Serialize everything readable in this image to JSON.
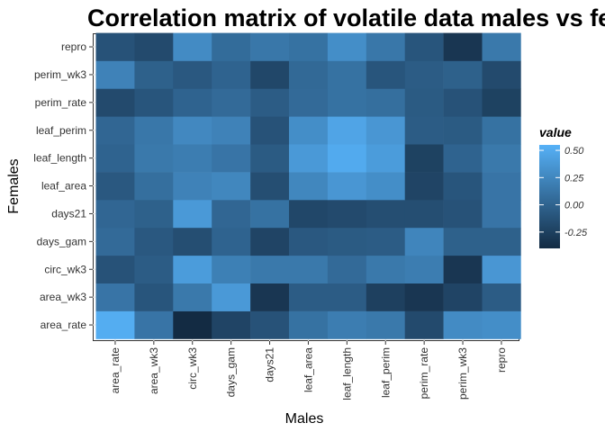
{
  "chart_data": {
    "type": "heatmap",
    "title": "Correlation matrix of volatile data males vs females",
    "xlabel": "Males",
    "ylabel": "Females",
    "x_categories": [
      "area_rate",
      "area_wk3",
      "circ_wk3",
      "days_gam",
      "days21",
      "leaf_area",
      "leaf_length",
      "leaf_perim",
      "perim_rate",
      "perim_wk3",
      "repro"
    ],
    "y_categories": [
      "area_rate",
      "area_wk3",
      "circ_wk3",
      "days_gam",
      "days21",
      "leaf_area",
      "leaf_length",
      "leaf_perim",
      "perim_rate",
      "perim_wk3",
      "repro"
    ],
    "values": [
      [
        0.52,
        0.12,
        -0.4,
        -0.22,
        -0.12,
        0.1,
        0.18,
        0.15,
        -0.18,
        0.28,
        0.3
      ],
      [
        0.12,
        -0.1,
        0.15,
        0.38,
        -0.32,
        -0.05,
        -0.05,
        -0.25,
        -0.32,
        -0.22,
        -0.05
      ],
      [
        -0.12,
        -0.05,
        0.4,
        0.2,
        0.15,
        0.15,
        0.05,
        0.15,
        0.18,
        -0.32,
        0.36
      ],
      [
        0.05,
        -0.08,
        -0.15,
        0.0,
        -0.22,
        -0.08,
        -0.06,
        -0.05,
        0.24,
        -0.02,
        -0.02
      ],
      [
        0.02,
        -0.02,
        0.38,
        0.02,
        0.1,
        -0.2,
        -0.18,
        -0.15,
        -0.15,
        -0.12,
        0.12
      ],
      [
        -0.08,
        0.08,
        0.22,
        0.25,
        -0.15,
        0.25,
        0.36,
        0.3,
        -0.22,
        -0.1,
        0.12
      ],
      [
        0.0,
        0.15,
        0.18,
        0.12,
        -0.06,
        0.38,
        0.5,
        0.4,
        -0.24,
        0.0,
        0.15
      ],
      [
        0.02,
        0.14,
        0.26,
        0.22,
        -0.12,
        0.3,
        0.46,
        0.36,
        -0.05,
        -0.06,
        0.1
      ],
      [
        -0.18,
        -0.1,
        0.0,
        0.05,
        -0.05,
        0.05,
        0.1,
        0.08,
        -0.06,
        -0.12,
        -0.24
      ],
      [
        0.22,
        -0.02,
        -0.08,
        0.0,
        -0.2,
        0.04,
        0.1,
        -0.1,
        -0.05,
        -0.02,
        -0.18
      ],
      [
        -0.12,
        -0.18,
        0.28,
        0.06,
        0.14,
        0.1,
        0.3,
        0.14,
        -0.1,
        -0.32,
        0.15
      ]
    ],
    "legend": {
      "title": "value",
      "ticks": [
        0.5,
        0.25,
        0.0,
        -0.25
      ],
      "tick_labels": [
        "0.50",
        "0.25",
        "0.00",
        "-0.25"
      ],
      "range": [
        -0.4,
        0.55
      ],
      "low_color": "#132B43",
      "high_color": "#56B1F7",
      "placement": "right"
    },
    "grid": true
  }
}
